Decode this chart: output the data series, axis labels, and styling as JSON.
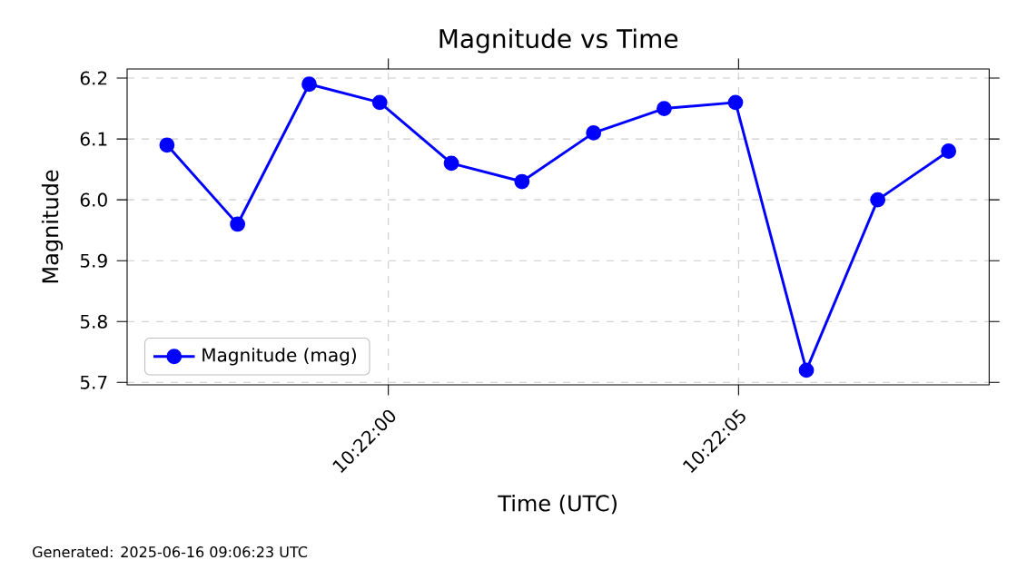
{
  "chart_data": {
    "type": "line",
    "title": "Magnitude vs Time",
    "xlabel": "Time (UTC)",
    "ylabel": "Magnitude",
    "x": [
      10.365789,
      10.366069,
      10.366353,
      10.366633,
      10.366917,
      10.367197,
      10.367481,
      10.367761,
      10.368044,
      10.368325,
      10.368608,
      10.368889
    ],
    "series": [
      {
        "name": "Magnitude (mag)",
        "color": "#0000ff",
        "values": [
          6.09,
          5.96,
          6.19,
          6.16,
          6.06,
          6.03,
          6.11,
          6.15,
          6.16,
          5.72,
          6.0,
          6.08
        ]
      }
    ],
    "xlim": [
      10.365631,
      10.36905
    ],
    "ylim": [
      5.696,
      6.215
    ],
    "xticks": [
      {
        "value": 10.366667,
        "label": "10:22:00"
      },
      {
        "value": 10.368056,
        "label": "10:22:05"
      }
    ],
    "yticks": [
      5.7,
      5.8,
      5.9,
      {
        "value": 6.0,
        "label": "6.0"
      },
      6.1,
      6.2
    ],
    "grid": true,
    "legend": "bottom left",
    "marker": "circle",
    "line_style": "solid",
    "annotations": [
      "Generated: 2025-06-16 09:06:23 UTC"
    ]
  }
}
